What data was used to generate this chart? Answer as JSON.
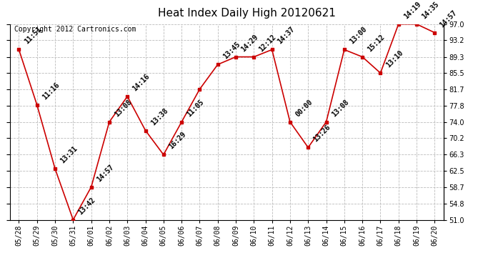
{
  "title": "Heat Index Daily High 20120621",
  "copyright": "Copyright 2012 Cartronics.com",
  "ylim": [
    51.0,
    97.0
  ],
  "yticks": [
    51.0,
    54.8,
    58.7,
    62.5,
    66.3,
    70.2,
    74.0,
    77.8,
    81.7,
    85.5,
    89.3,
    93.2,
    97.0
  ],
  "dates": [
    "05/28",
    "05/29",
    "05/30",
    "05/31",
    "06/01",
    "06/02",
    "06/03",
    "06/04",
    "06/05",
    "06/06",
    "06/07",
    "06/08",
    "06/09",
    "06/10",
    "06/11",
    "06/12",
    "06/13",
    "06/14",
    "06/15",
    "06/16",
    "06/17",
    "06/18",
    "06/19",
    "06/20"
  ],
  "values": [
    91.0,
    78.0,
    63.0,
    51.0,
    58.7,
    74.0,
    80.0,
    72.0,
    66.3,
    74.0,
    81.7,
    87.5,
    89.3,
    89.3,
    91.0,
    74.0,
    68.0,
    74.0,
    91.0,
    89.3,
    85.5,
    97.0,
    97.0,
    95.0
  ],
  "labels": [
    "11:51",
    "11:16",
    "13:31",
    "13:42",
    "14:57",
    "13:08",
    "14:16",
    "13:38",
    "16:29",
    "11:05",
    "",
    "13:45",
    "14:29",
    "12:12",
    "14:37",
    "00:00",
    "13:26",
    "13:08",
    "13:00",
    "15:12",
    "13:10",
    "14:19",
    "14:35",
    "14:57"
  ],
  "line_color": "#cc0000",
  "marker_color": "#cc0000",
  "bg_color": "#ffffff",
  "plot_bg_color": "#ffffff",
  "grid_color": "#bbbbbb",
  "title_fontsize": 11,
  "label_fontsize": 7,
  "tick_fontsize": 7,
  "copyright_fontsize": 7
}
